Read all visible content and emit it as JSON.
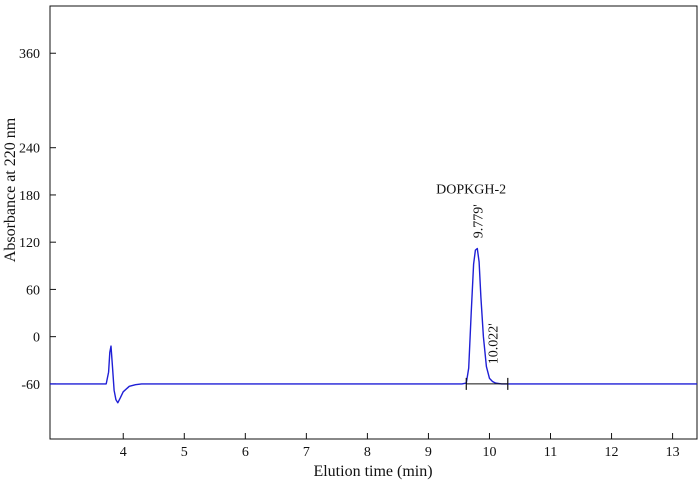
{
  "chart_data": {
    "type": "line",
    "title": "",
    "xlabel": "Elution time (min)",
    "ylabel": "Absorbance at 220 nm",
    "xlim": [
      2.8,
      13.4
    ],
    "ylim": [
      -130,
      420
    ],
    "xticks": [
      4,
      5,
      6,
      7,
      8,
      9,
      10,
      11,
      12,
      13
    ],
    "yticks": [
      -60,
      0,
      60,
      120,
      180,
      240,
      360
    ],
    "grid": false,
    "series": [
      {
        "color": "#1f1fd6",
        "x": [
          2.8,
          3.72,
          3.76,
          3.78,
          3.8,
          3.82,
          3.85,
          3.88,
          3.91,
          3.95,
          4.0,
          4.1,
          4.2,
          4.3,
          9.55,
          9.62,
          9.66,
          9.7,
          9.74,
          9.77,
          9.8,
          9.83,
          9.86,
          9.9,
          9.95,
          10.0,
          10.05,
          10.1,
          10.2,
          10.3,
          13.4
        ],
        "y": [
          -60,
          -60,
          -45,
          -20,
          -12,
          -35,
          -68,
          -80,
          -84,
          -78,
          -70,
          -63,
          -61,
          -60,
          -60,
          -59,
          -40,
          30,
          92,
          110,
          112,
          95,
          50,
          0,
          -38,
          -53,
          -57,
          -59,
          -60,
          -60,
          -60
        ]
      }
    ],
    "peak_markers_x": [
      9.62,
      10.3
    ],
    "annotations": [
      {
        "text": "DOPKGH-2",
        "x": 9.7,
        "y": 182
      },
      {
        "text": "9.779'",
        "x": 9.8,
        "y": 125
      },
      {
        "text": "10.022'",
        "x": 10.05,
        "y": -35
      }
    ]
  }
}
